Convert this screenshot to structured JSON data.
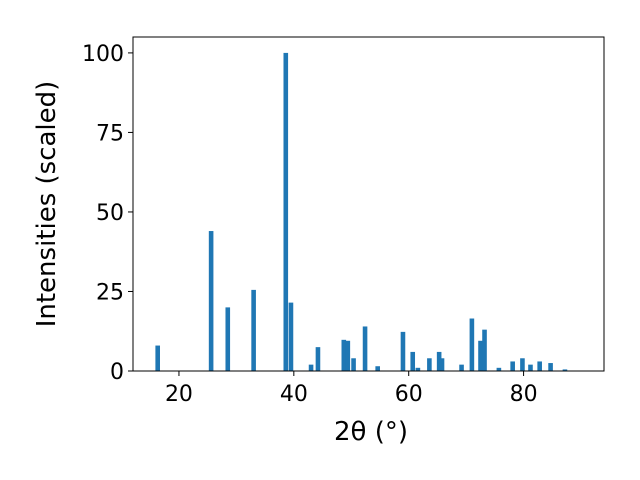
{
  "chart_data": {
    "type": "bar",
    "x_label": "2θ (°)",
    "y_label": "Intensities (scaled)",
    "color": "#1f77b4",
    "bar_width": 0.8,
    "x": [
      16.3,
      25.6,
      28.5,
      33.0,
      38.6,
      39.5,
      43.0,
      44.2,
      48.7,
      49.4,
      50.4,
      52.4,
      54.6,
      59.0,
      60.7,
      61.6,
      63.6,
      65.3,
      65.8,
      69.2,
      71.0,
      72.5,
      73.2,
      75.7,
      78.1,
      79.8,
      81.2,
      82.8,
      84.7,
      87.2
    ],
    "values": [
      8,
      44,
      20,
      25.5,
      100,
      21.5,
      2,
      7.5,
      9.8,
      9.5,
      4,
      14,
      1.5,
      12.3,
      6,
      1,
      4,
      6,
      4,
      2,
      16.5,
      9.5,
      13,
      1,
      3,
      4,
      2,
      3,
      2.5,
      0.5
    ],
    "xlim": [
      12,
      94
    ],
    "ylim": [
      0,
      105
    ],
    "xticks": [
      20,
      40,
      60,
      80
    ],
    "yticks": [
      0,
      25,
      50,
      75,
      100
    ]
  }
}
